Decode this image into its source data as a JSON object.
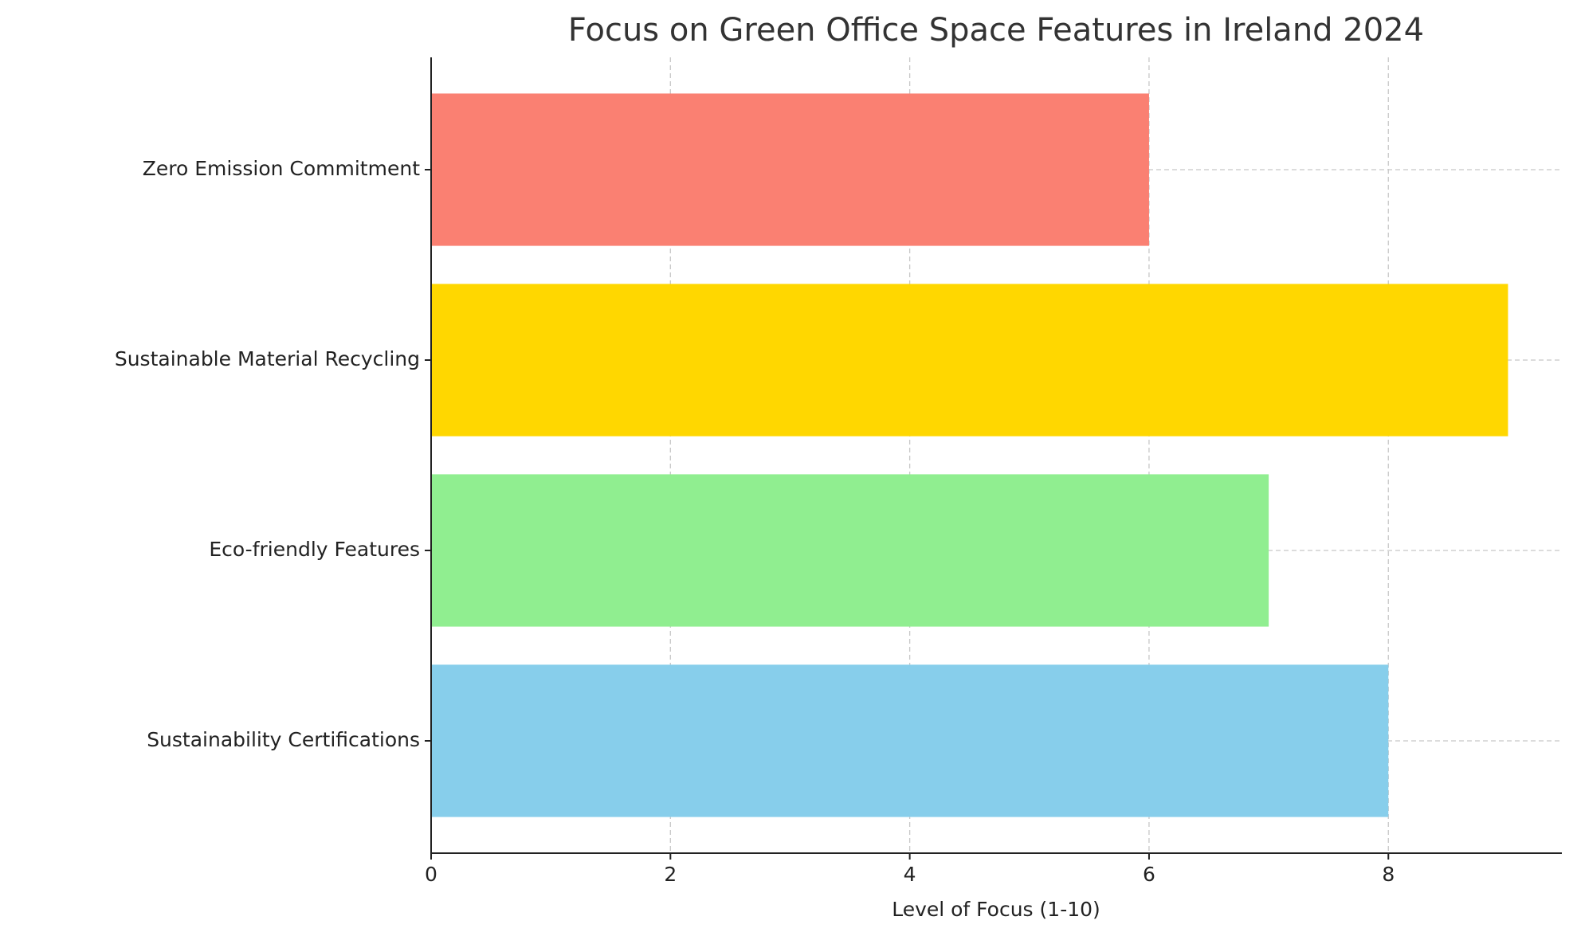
{
  "chart_data": {
    "type": "barh",
    "title": "Focus on Green Office Space Features in Ireland 2024",
    "xlabel": "Level of Focus (1-10)",
    "categories": [
      "Sustainability Certifications",
      "Eco-friendly Features",
      "Sustainable Material Recycling",
      "Zero Emission Commitment"
    ],
    "values": [
      8,
      7,
      9,
      6
    ],
    "colors": [
      "#87ceeb",
      "#90ee90",
      "#ffd700",
      "#fa8072"
    ],
    "xlim": [
      0,
      9.45
    ],
    "xticks": [
      0,
      2,
      4,
      6,
      8
    ],
    "grid": true
  }
}
